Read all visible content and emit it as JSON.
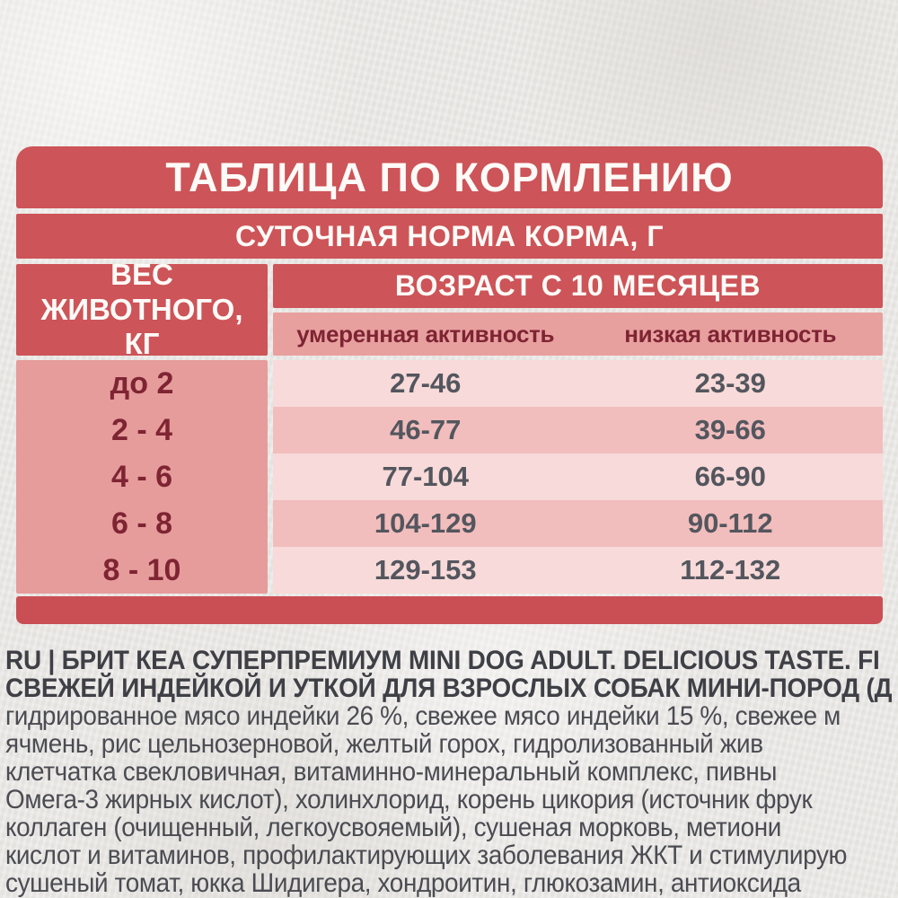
{
  "feeding_table": {
    "title": "ТАБЛИЦА ПО КОРМЛЕНИЮ",
    "subtitle": "СУТОЧНАЯ НОРМА КОРМА, Г",
    "weight_header": "ВЕС ЖИВОТНОГО, КГ",
    "age_header": "ВОЗРАСТ С 10 МЕСЯЦЕВ",
    "activity_columns": [
      "умеренная активность",
      "низкая активность"
    ],
    "rows": [
      {
        "weight": "до 2",
        "moderate_activity": "27-46",
        "low_activity": "23-39"
      },
      {
        "weight": "2 - 4",
        "moderate_activity": "46-77",
        "low_activity": "39-66"
      },
      {
        "weight": "4 - 6",
        "moderate_activity": "77-104",
        "low_activity": "66-90"
      },
      {
        "weight": "6 - 8",
        "moderate_activity": "104-129",
        "low_activity": "90-112"
      },
      {
        "weight": "8 - 10",
        "moderate_activity": "129-153",
        "low_activity": "112-132"
      }
    ]
  },
  "colors": {
    "header_red": "#cd5458",
    "footer_red": "#ca4f55",
    "pink_weight_column": "#e69c9b",
    "pink_subheader": "#e8a09f",
    "row_light_pink": "#f7dad9",
    "row_dark_pink": "#f1bebd",
    "maroon_text": "#7e2433",
    "number_text": "#54565e",
    "paper_background": "#ebe9e6"
  },
  "description": {
    "lines": [
      "RU  |  БРИТ КЕА СУПЕРПРЕМИУМ MINI DOG ADULT. DELICIOUS TASTE. FI",
      "СВЕЖЕЙ ИНДЕЙКОЙ И УТКОЙ ДЛЯ ВЗРОСЛЫХ СОБАК МИНИ-ПОРОД (Д",
      "гидрированное мясо индейки 26 %, свежее мясо индейки 15 %, свежее м",
      "ячмень, рис цельнозерновой, желтый горох, гидролизованный жив",
      "клетчатка свекловичная, витаминно-минеральный комплекс, пивны",
      "Омега-3 жирных кислот), холинхлорид, корень цикория (источник фрук",
      "коллаген (очищенный, легкоусвояемый), сушеная морковь, метиони",
      "кислот и витаминов, профилактирующих заболевания ЖКТ и стимулирую",
      "сушеный томат, юкка Шидигера, хондроитин, глюкозамин, антиоксида"
    ]
  }
}
